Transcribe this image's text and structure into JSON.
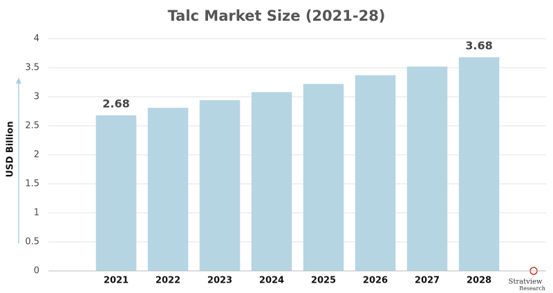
{
  "chart_data": {
    "type": "bar",
    "title": "Talc Market Size (2021-28)",
    "y_label": "USD Billion",
    "categories": [
      "2021",
      "2022",
      "2023",
      "2024",
      "2025",
      "2026",
      "2027",
      "2028"
    ],
    "values": [
      2.68,
      2.81,
      2.94,
      3.08,
      3.22,
      3.37,
      3.52,
      3.68
    ],
    "value_labels": [
      "2.68",
      null,
      null,
      null,
      null,
      null,
      null,
      "3.68"
    ],
    "color": "#b5d5e3",
    "ylim": [
      0,
      4
    ],
    "yticks": [
      0,
      0.5,
      1,
      1.5,
      2,
      2.5,
      3,
      3.5,
      4
    ],
    "grid": true
  },
  "logo": {
    "name": "Stratview",
    "subname": "Research"
  }
}
